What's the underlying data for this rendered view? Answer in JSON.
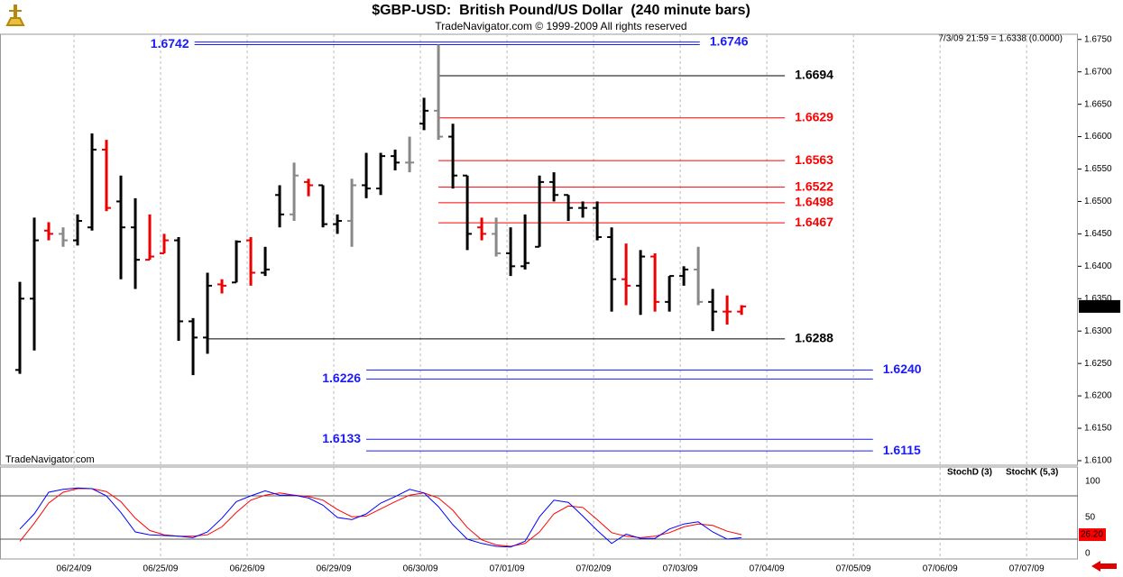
{
  "chart_data": [
    {
      "type": "ohlc",
      "title": "$GBP-USD:  British Pound/US Dollar  (240 minute bars)",
      "subtitle": "TradeNavigator.com © 1999-2009 All rights reserved",
      "status": "7/3/09 21:59 = 1.6338 (0.0000)",
      "watermark": "TradeNavigator.com",
      "last_value": 1.6338,
      "xlim": [
        -1.375,
        73.3
      ],
      "ylim": [
        1.6093,
        1.6758
      ],
      "yticks": [
        {
          "value": 1.675,
          "label": "1.6750"
        },
        {
          "value": 1.67,
          "label": "1.6700"
        },
        {
          "value": 1.665,
          "label": "1.6650"
        },
        {
          "value": 1.66,
          "label": "1.6600"
        },
        {
          "value": 1.655,
          "label": "1.6550"
        },
        {
          "value": 1.65,
          "label": "1.6500"
        },
        {
          "value": 1.645,
          "label": "1.6450"
        },
        {
          "value": 1.64,
          "label": "1.6400"
        },
        {
          "value": 1.635,
          "label": "1.6350"
        },
        {
          "value": 1.63,
          "label": "1.6300"
        },
        {
          "value": 1.625,
          "label": "1.6250"
        },
        {
          "value": 1.62,
          "label": "1.6200"
        },
        {
          "value": 1.615,
          "label": "1.6150"
        },
        {
          "value": 1.61,
          "label": "1.6100"
        }
      ],
      "open": [
        1.624,
        1.635,
        1.6455,
        1.645,
        1.644,
        1.646,
        1.658,
        1.65,
        1.646,
        1.641,
        1.642,
        1.644,
        1.6315,
        1.629,
        1.6372,
        1.6375,
        1.644,
        1.639,
        1.651,
        1.648,
        1.653,
        1.6525,
        1.6465,
        1.647,
        1.6525,
        1.652,
        1.657,
        1.656,
        1.662,
        1.664,
        1.66,
        1.654,
        1.646,
        1.645,
        1.642,
        1.64,
        1.643,
        1.653,
        1.651,
        1.649,
        1.649,
        1.6445,
        1.638,
        1.637,
        1.6415,
        1.6345,
        1.6385,
        1.6395,
        1.6345,
        1.633,
        1.633
      ],
      "high": [
        1.6376,
        1.6475,
        1.6468,
        1.646,
        1.648,
        1.6605,
        1.6595,
        1.654,
        1.6505,
        1.648,
        1.645,
        1.6445,
        1.632,
        1.639,
        1.638,
        1.644,
        1.6445,
        1.643,
        1.6525,
        1.656,
        1.6535,
        1.6525,
        1.648,
        1.6535,
        1.6575,
        1.6575,
        1.658,
        1.66,
        1.666,
        1.6742,
        1.662,
        1.654,
        1.6475,
        1.6475,
        1.646,
        1.648,
        1.654,
        1.6545,
        1.651,
        1.65,
        1.65,
        1.646,
        1.6435,
        1.6425,
        1.642,
        1.6385,
        1.64,
        1.643,
        1.6365,
        1.6355,
        1.634
      ],
      "low": [
        1.6234,
        1.627,
        1.644,
        1.643,
        1.6432,
        1.6455,
        1.6485,
        1.638,
        1.6365,
        1.641,
        1.642,
        1.6285,
        1.6232,
        1.6265,
        1.6358,
        1.6375,
        1.637,
        1.6385,
        1.646,
        1.647,
        1.6508,
        1.646,
        1.645,
        1.643,
        1.6505,
        1.651,
        1.6548,
        1.6545,
        1.661,
        1.6595,
        1.652,
        1.6425,
        1.644,
        1.6415,
        1.6385,
        1.6395,
        1.643,
        1.65,
        1.647,
        1.6475,
        1.644,
        1.633,
        1.634,
        1.6325,
        1.633,
        1.633,
        1.637,
        1.634,
        1.63,
        1.631,
        1.6325
      ],
      "close": [
        1.635,
        1.644,
        1.645,
        1.644,
        1.647,
        1.658,
        1.649,
        1.646,
        1.641,
        1.6415,
        1.644,
        1.6315,
        1.629,
        1.637,
        1.637,
        1.6438,
        1.639,
        1.6395,
        1.648,
        1.654,
        1.6525,
        1.6465,
        1.647,
        1.6525,
        1.652,
        1.657,
        1.656,
        1.656,
        1.664,
        1.66,
        1.654,
        1.645,
        1.645,
        1.642,
        1.64,
        1.6405,
        1.653,
        1.651,
        1.649,
        1.649,
        1.6445,
        1.638,
        1.637,
        1.6415,
        1.6345,
        1.6385,
        1.6395,
        1.6345,
        1.633,
        1.633,
        1.6338
      ],
      "colors": [
        "#000",
        "#000",
        "#e00",
        "#888",
        "#000",
        "#000",
        "#e00",
        "#000",
        "#000",
        "#e00",
        "#e00",
        "#000",
        "#000",
        "#000",
        "#e00",
        "#000",
        "#e00",
        "#000",
        "#000",
        "#888",
        "#e00",
        "#000",
        "#000",
        "#888",
        "#000",
        "#000",
        "#000",
        "#888",
        "#000",
        "#888",
        "#000",
        "#000",
        "#e00",
        "#888",
        "#000",
        "#000",
        "#000",
        "#000",
        "#000",
        "#000",
        "#000",
        "#000",
        "#e00",
        "#000",
        "#e00",
        "#000",
        "#000",
        "#888",
        "#000",
        "#e00",
        "#e00"
      ],
      "levels": [
        {
          "value": 1.6746,
          "label": "1.6746",
          "color": "#1a1aff",
          "start": 12.1,
          "end": 47.1,
          "side": "right"
        },
        {
          "value": 1.6742,
          "label": "1.6742",
          "color": "#1a1aff",
          "start": 12.1,
          "end": 47.1,
          "side": "left"
        },
        {
          "value": 1.6694,
          "label": "1.6694",
          "color": "#000000",
          "start": 29,
          "end": 53,
          "side": "right"
        },
        {
          "value": 1.6629,
          "label": "1.6629",
          "color": "#ff0000",
          "start": 29,
          "end": 53,
          "side": "right"
        },
        {
          "value": 1.6563,
          "label": "1.6563",
          "color": "#ff0000",
          "start": 29,
          "end": 53,
          "side": "right"
        },
        {
          "value": 1.6522,
          "label": "1.6522",
          "color": "#ff0000",
          "start": 29,
          "end": 53,
          "side": "right"
        },
        {
          "value": 1.6498,
          "label": "1.6498",
          "color": "#ff0000",
          "start": 29,
          "end": 53,
          "side": "right"
        },
        {
          "value": 1.6467,
          "label": "1.6467",
          "color": "#ff0000",
          "start": 29,
          "end": 53,
          "side": "right"
        },
        {
          "value": 1.6288,
          "label": "1.6288",
          "color": "#000000",
          "start": 13,
          "end": 53,
          "side": "right"
        },
        {
          "value": 1.624,
          "label": "1.6240",
          "color": "#1a1aff",
          "start": 24,
          "end": 59.1,
          "side": "right"
        },
        {
          "value": 1.6226,
          "label": "1.6226",
          "color": "#1a1aff",
          "start": 24,
          "end": 59.1,
          "side": "left"
        },
        {
          "value": 1.6133,
          "label": "1.6133",
          "color": "#1a1aff",
          "start": 24,
          "end": 59.1,
          "side": "left"
        },
        {
          "value": 1.6115,
          "label": "1.6115",
          "color": "#1a1aff",
          "start": 24,
          "end": 59.1,
          "side": "right"
        }
      ]
    },
    {
      "type": "line",
      "xlim": [
        -1.375,
        73.3
      ],
      "ylim": [
        -7.5,
        120
      ],
      "yticks": [
        100,
        50,
        0
      ],
      "hlines": [
        80,
        20
      ],
      "last_value": {
        "value": 26.2,
        "label": "26.20"
      },
      "xticks": [
        {
          "value": 3.75,
          "label": "06/24/09"
        },
        {
          "value": 9.75,
          "label": "06/25/09"
        },
        {
          "value": 15.75,
          "label": "06/26/09"
        },
        {
          "value": 21.75,
          "label": "06/29/09"
        },
        {
          "value": 27.75,
          "label": "06/30/09"
        },
        {
          "value": 33.75,
          "label": "07/01/09"
        },
        {
          "value": 39.75,
          "label": "07/02/09"
        },
        {
          "value": 45.75,
          "label": "07/03/09"
        },
        {
          "value": 51.75,
          "label": "07/04/09"
        },
        {
          "value": 57.75,
          "label": "07/05/09"
        },
        {
          "value": 63.75,
          "label": "07/06/09"
        },
        {
          "value": 69.75,
          "label": "07/07/09"
        }
      ],
      "series": [
        {
          "name": "StochD (3)",
          "color": "#ff0000",
          "values": [
            17,
            42,
            70,
            85,
            90,
            90,
            86,
            72,
            49,
            32,
            26,
            24,
            24,
            26,
            37,
            57,
            74,
            81,
            84,
            81,
            79,
            74,
            61,
            51,
            52,
            62,
            72,
            81,
            84,
            77,
            60,
            36,
            19,
            12,
            10,
            14,
            30,
            55,
            66,
            64,
            47,
            29,
            24,
            22,
            24,
            29,
            37,
            41,
            39,
            31,
            26.2
          ]
        },
        {
          "name": "StochK (5,3)",
          "color": "#0000ff",
          "values": [
            34,
            55,
            85,
            89,
            91,
            90,
            80,
            57,
            30,
            26,
            25,
            24,
            22,
            30,
            49,
            72,
            80,
            87,
            81,
            81,
            77,
            67,
            50,
            47,
            55,
            70,
            79,
            89,
            84,
            65,
            40,
            20,
            14,
            10,
            9,
            17,
            51,
            74,
            71,
            52,
            32,
            14,
            27,
            21,
            21,
            34,
            41,
            44,
            30,
            20,
            22
          ]
        }
      ]
    }
  ]
}
